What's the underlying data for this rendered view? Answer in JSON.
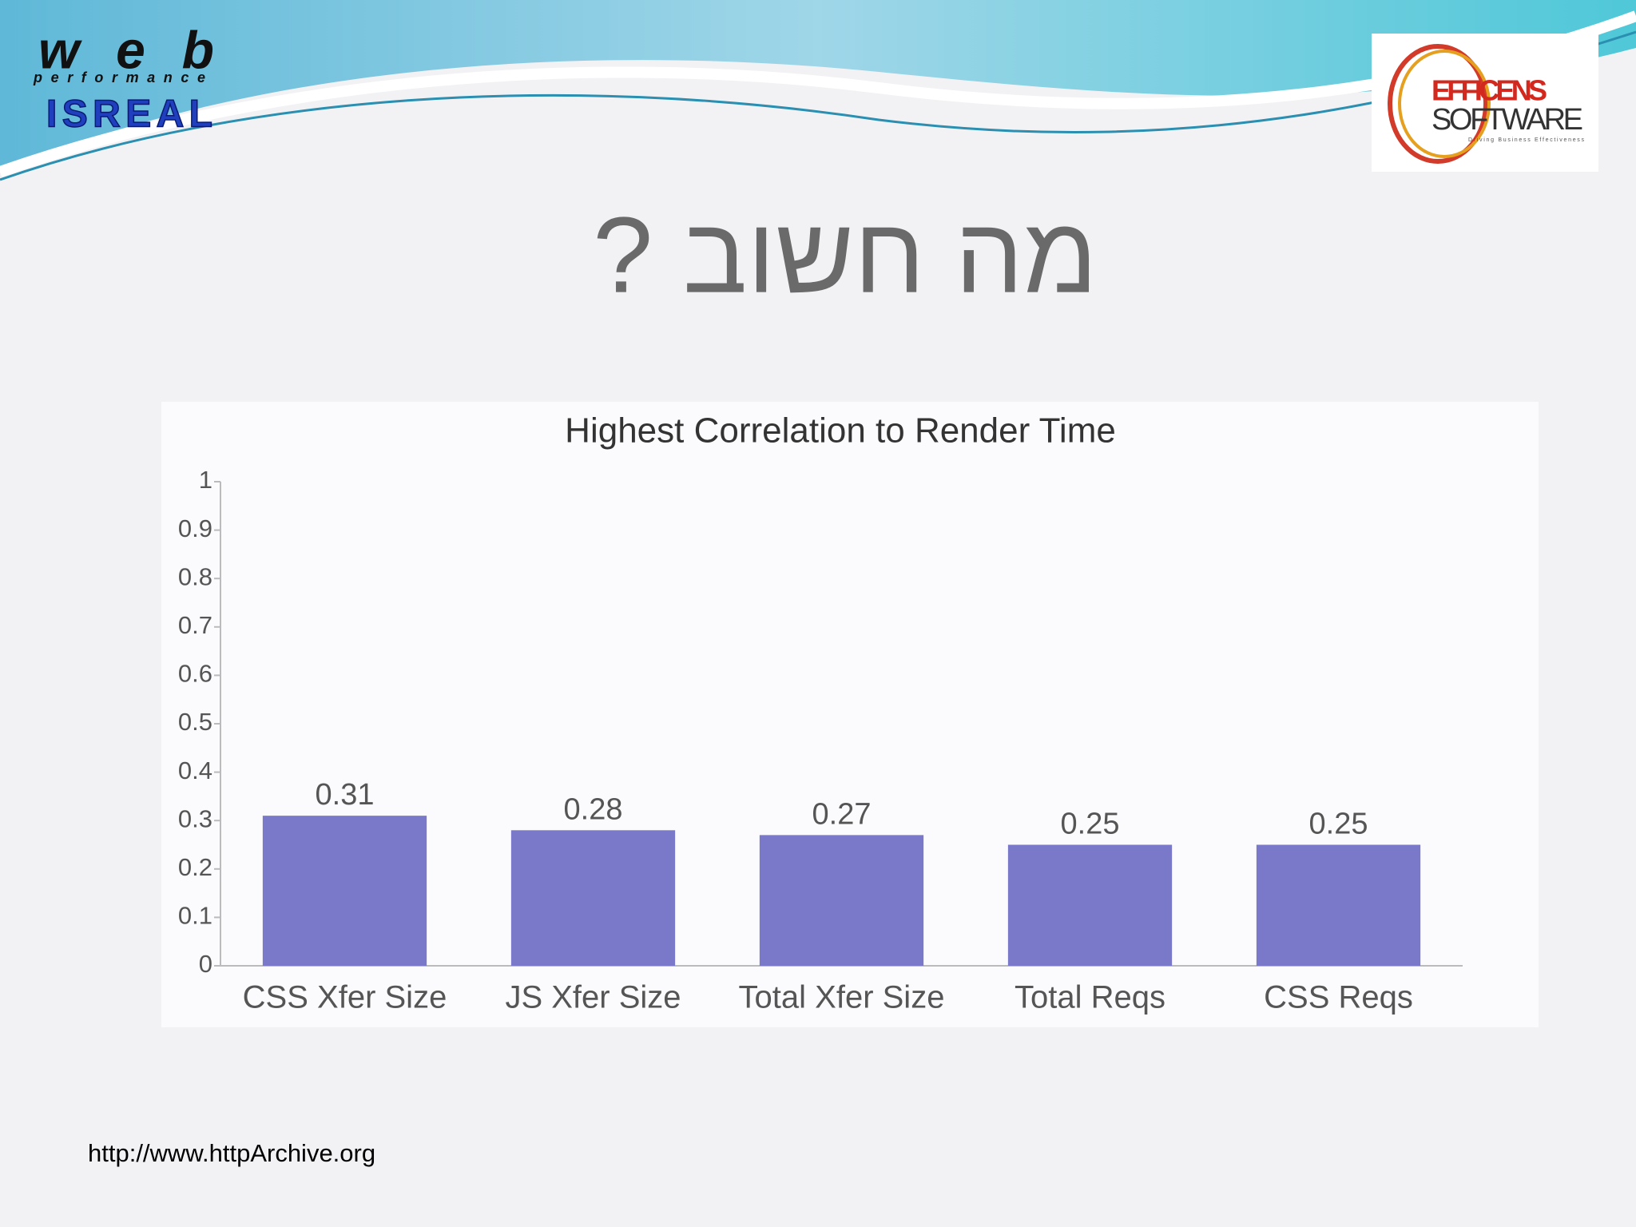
{
  "logo_left": {
    "word": "web",
    "tagline": "performance",
    "country": "ISREAL"
  },
  "logo_right": {
    "line1": "EFFICENS",
    "line2": "SOFTWARE",
    "tagline": "Driving Business Effectiveness"
  },
  "slide_title": "מה חשוב ?",
  "source": "http://www.httpArchive.org",
  "chart_data": {
    "type": "bar",
    "title": "Highest Correlation to Render Time",
    "categories": [
      "CSS Xfer Size",
      "JS Xfer Size",
      "Total Xfer Size",
      "Total Reqs",
      "CSS Reqs"
    ],
    "values": [
      0.31,
      0.28,
      0.27,
      0.25,
      0.25
    ],
    "color": "#7a78c9",
    "ylim": [
      0,
      1
    ],
    "yticks": [
      0,
      0.1,
      0.2,
      0.3,
      0.4,
      0.5,
      0.6,
      0.7,
      0.8,
      0.9,
      1
    ]
  }
}
